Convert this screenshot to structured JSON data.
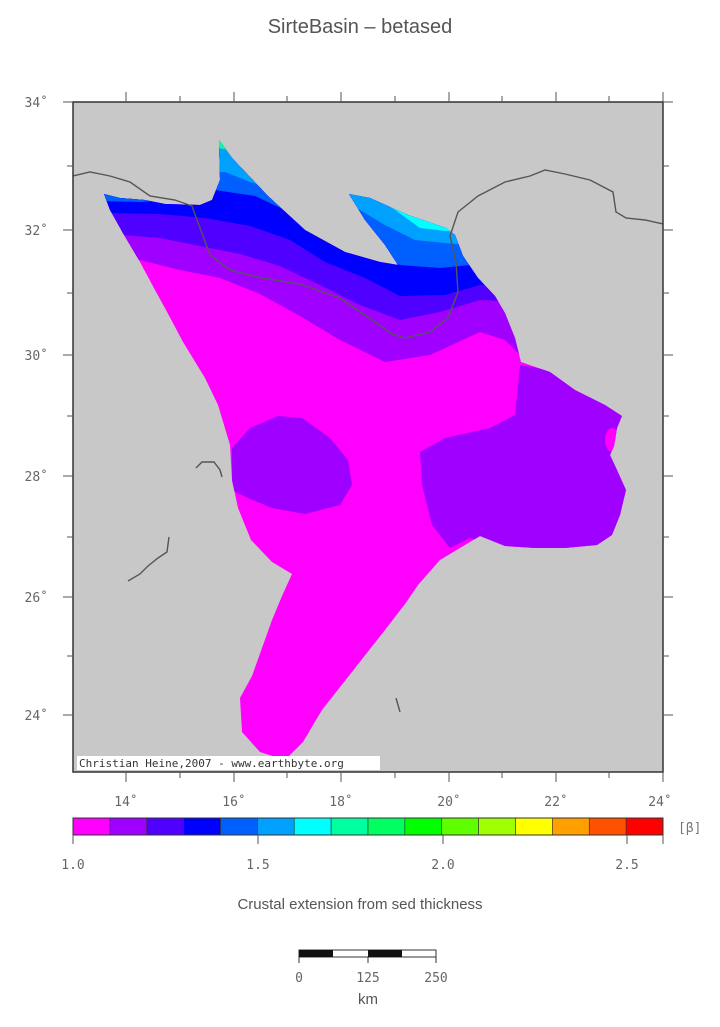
{
  "map": {
    "title": "SirteBasin – betased",
    "lat_labels": [
      "34˚",
      "32˚",
      "30˚",
      "28˚",
      "26˚",
      "24˚"
    ],
    "lon_labels": [
      "14˚",
      "16˚",
      "18˚",
      "20˚",
      "22˚",
      "24˚"
    ],
    "credit": "Christian Heine,2007 - www.earthbyte.org",
    "background_color": "#c8c8c8"
  },
  "colorbar": {
    "unit_label": "[β]",
    "tick_labels": [
      "1.0",
      "1.5",
      "2.0",
      "2.5"
    ],
    "colors": [
      "#ff00ff",
      "#a000ff",
      "#5000ff",
      "#0000ff",
      "#0060ff",
      "#00a0ff",
      "#00ffff",
      "#00ffa0",
      "#00ff60",
      "#00ff00",
      "#60ff00",
      "#a0ff00",
      "#ffff00",
      "#ffa000",
      "#ff5000",
      "#ff0000"
    ],
    "caption": "Crustal extension from sed thickness"
  },
  "scalebar": {
    "labels": [
      "0",
      "125",
      "250"
    ],
    "unit": "km"
  }
}
